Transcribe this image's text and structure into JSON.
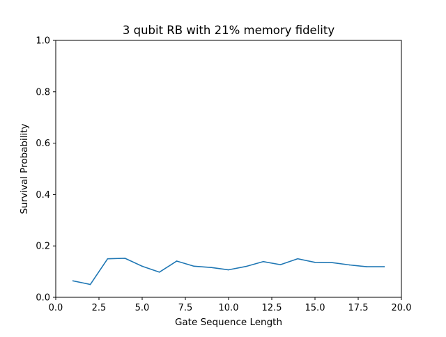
{
  "chart_data": {
    "type": "line",
    "title": "3 qubit RB with 21% memory fidelity",
    "xlabel": "Gate Sequence Length",
    "ylabel": "Survival Probability",
    "xlim": [
      0,
      20
    ],
    "ylim": [
      0,
      1
    ],
    "xticks": [
      0,
      2.5,
      5,
      7.5,
      10,
      12.5,
      15,
      17.5,
      20
    ],
    "xtick_labels": [
      "0.0",
      "2.5",
      "5.0",
      "7.5",
      "10.0",
      "12.5",
      "15.0",
      "17.5",
      "20.0"
    ],
    "yticks": [
      0,
      0.2,
      0.4,
      0.6,
      0.8,
      1.0
    ],
    "ytick_labels": [
      "0.0",
      "0.2",
      "0.4",
      "0.6",
      "0.8",
      "1.0"
    ],
    "grid": false,
    "series": [
      {
        "color": "#1f77b4",
        "x": [
          1,
          2,
          3,
          4,
          5,
          6,
          7,
          8,
          9,
          10,
          11,
          12,
          13,
          14,
          15,
          16,
          17,
          18,
          19
        ],
        "y": [
          0.064,
          0.05,
          0.15,
          0.152,
          0.121,
          0.098,
          0.141,
          0.121,
          0.116,
          0.107,
          0.12,
          0.139,
          0.127,
          0.15,
          0.136,
          0.135,
          0.126,
          0.119,
          0.119
        ]
      }
    ]
  }
}
